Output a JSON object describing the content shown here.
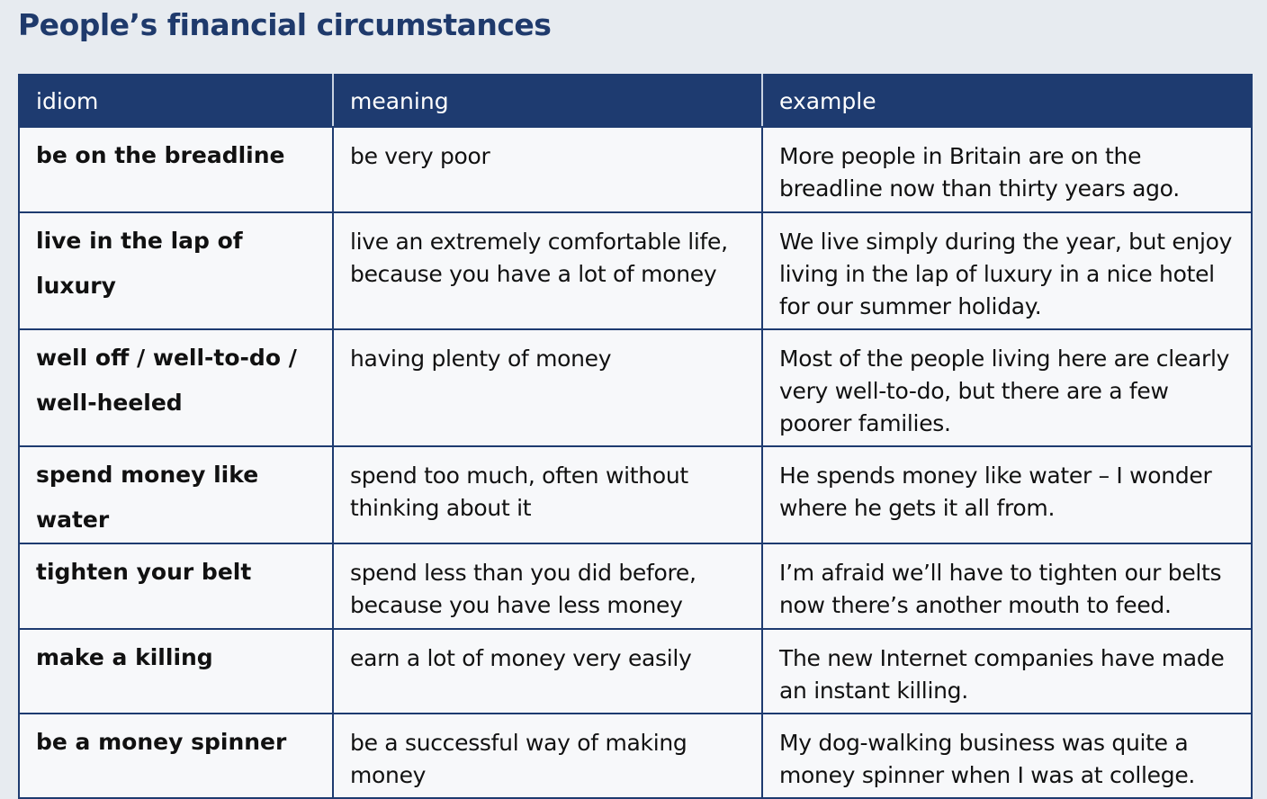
{
  "title": "People’s financial circumstances",
  "table": {
    "headers": [
      "idiom",
      "meaning",
      "example"
    ],
    "rows": [
      {
        "idiom": "be on the breadline",
        "meaning": "be very poor",
        "example": "More people in Britain are on the breadline now than thirty years ago."
      },
      {
        "idiom": "live in the lap of luxury",
        "meaning": "live an extremely comfortable life, because you have a lot of money",
        "example": "We live simply during the year, but enjoy living in the lap of luxury in a nice hotel for our summer holiday."
      },
      {
        "idiom": "well off / well-to-do / well-heeled",
        "meaning": "having plenty of money",
        "example": "Most of the people living here are clearly very well-to-do, but there are a few poorer families."
      },
      {
        "idiom": "spend money like water",
        "meaning": "spend too much, often without thinking about it",
        "example": "He spends money like water – I wonder where he gets it all from."
      },
      {
        "idiom": "tighten your belt",
        "meaning": "spend less than you did before, because you have less money",
        "example": "I’m afraid we’ll have to tighten our belts now there’s another mouth to feed."
      },
      {
        "idiom": "make a killing",
        "meaning": "earn a lot of money very easily",
        "example": "The new Internet companies have made an instant killing."
      },
      {
        "idiom": "be a money spinner",
        "meaning": "be a successful way of making money",
        "example": "My dog-walking business was quite a money spinner when I was at college."
      }
    ]
  }
}
